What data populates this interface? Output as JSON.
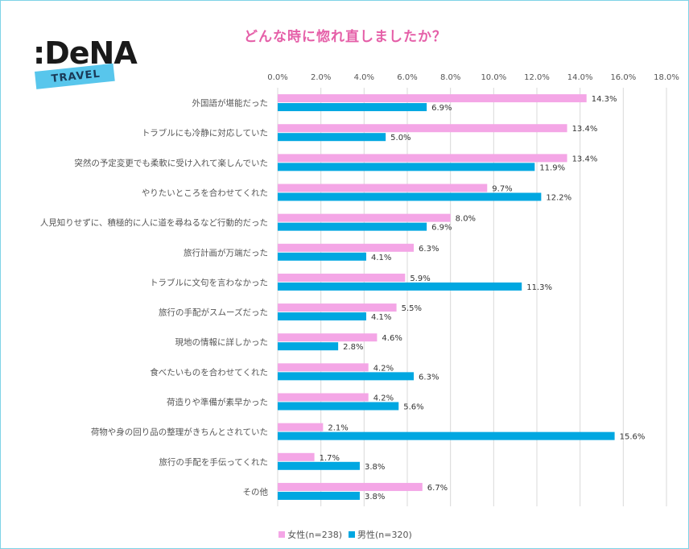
{
  "logo": {
    "word": ":DeNA",
    "sub": "TRAVEL"
  },
  "chart_data": {
    "type": "bar",
    "orientation": "horizontal",
    "title": "どんな時に惚れ直しましたか？",
    "xlim": [
      0,
      18
    ],
    "ticks": [
      0,
      2,
      4,
      6,
      8,
      10,
      12,
      14,
      16,
      18
    ],
    "tick_labels": [
      "0.0%",
      "2.0%",
      "4.0%",
      "6.0%",
      "8.0%",
      "10.0%",
      "12.0%",
      "14.0%",
      "16.0%",
      "18.0%"
    ],
    "grid": true,
    "legend_position": "bottom",
    "categories": [
      "外国語が堪能だった",
      "トラブルにも冷静に対応していた",
      "突然の予定変更でも柔軟に受け入れて楽しんでいた",
      "やりたいところを合わせてくれた",
      "人見知りせずに、積極的に人に道を尋ねるなど行動的だった",
      "旅行計画が万端だった",
      "トラブルに文句を言わなかった",
      "旅行の手配がスムーズだった",
      "現地の情報に詳しかった",
      "食べたいものを合わせてくれた",
      "荷造りや準備が素早かった",
      "荷物や身の回り品の整理がきちんとされていた",
      "旅行の手配を手伝ってくれた",
      "その他"
    ],
    "series": [
      {
        "name": "女性(n=238)",
        "color": "#f4a6e6",
        "values": [
          14.3,
          13.4,
          13.4,
          9.7,
          8.0,
          6.3,
          5.9,
          5.5,
          4.6,
          4.2,
          4.2,
          2.1,
          1.7,
          6.7
        ],
        "labels": [
          "14.3%",
          "13.4%",
          "13.4%",
          "9.7%",
          "8.0%",
          "6.3%",
          "5.9%",
          "5.5%",
          "4.6%",
          "4.2%",
          "4.2%",
          "2.1%",
          "1.7%",
          "6.7%"
        ]
      },
      {
        "name": "男性(n=320)",
        "color": "#00a7e1",
        "values": [
          6.9,
          5.0,
          11.9,
          12.2,
          6.9,
          4.1,
          11.3,
          4.1,
          2.8,
          6.3,
          5.6,
          15.6,
          3.8,
          3.8
        ],
        "labels": [
          "6.9%",
          "5.0%",
          "11.9%",
          "12.2%",
          "6.9%",
          "4.1%",
          "11.3%",
          "4.1%",
          "2.8%",
          "6.3%",
          "5.6%",
          "15.6%",
          "3.8%",
          "3.8%"
        ]
      }
    ]
  }
}
